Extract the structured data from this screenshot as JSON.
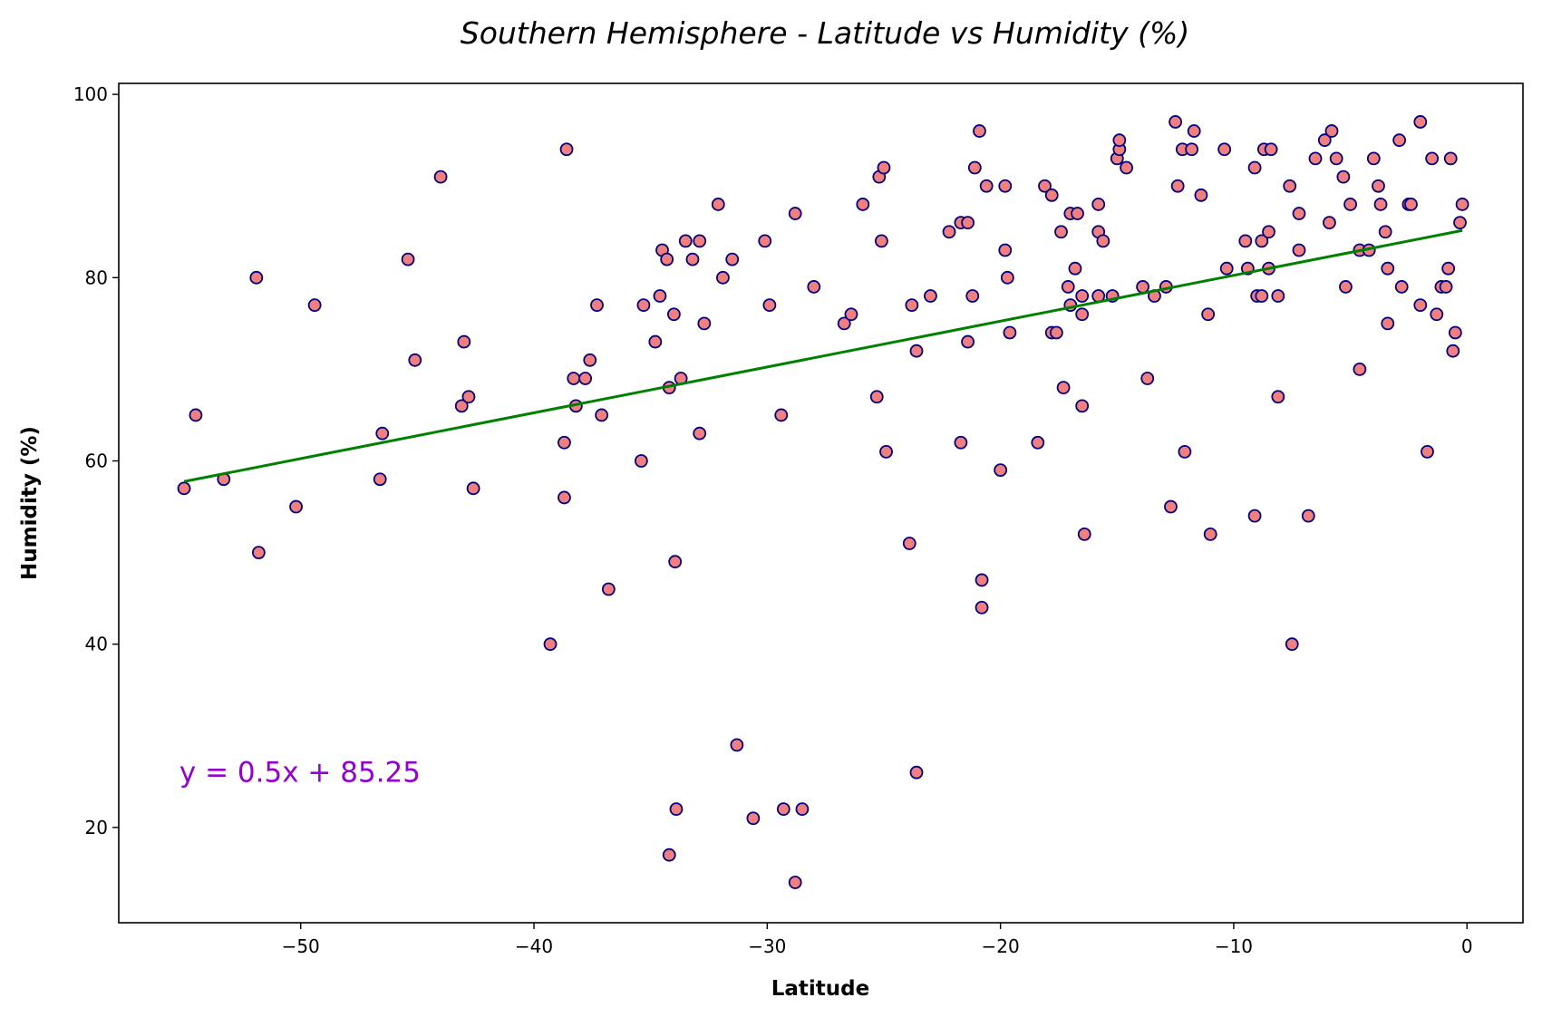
{
  "chart_data": {
    "type": "scatter",
    "title": "Southern Hemisphere - Latitude vs Humidity (%)",
    "xlabel": "Latitude",
    "ylabel": "Humidity (%)",
    "xlim": [
      -57.8,
      2.4
    ],
    "ylim": [
      9.6,
      101.2
    ],
    "grid": false,
    "x_ticks": [
      -50,
      -40,
      -30,
      -20,
      -10,
      0
    ],
    "x_tick_labels": [
      "−50",
      "−40",
      "−30",
      "−20",
      "−10",
      "0"
    ],
    "y_ticks": [
      20,
      40,
      60,
      80,
      100
    ],
    "y_tick_labels": [
      "20",
      "40",
      "60",
      "80",
      "100"
    ],
    "marker_fill": "#f08080",
    "marker_edge": "#000080",
    "regression": {
      "slope": 0.5,
      "intercept": 85.25,
      "x_range": [
        -55.0,
        -0.2
      ],
      "color": "#008000",
      "equation": "y = 0.5x + 85.25",
      "equation_color": "#9400d3",
      "equation_position": [
        -55.2,
        25
      ]
    },
    "points": [
      [
        -55.0,
        57
      ],
      [
        -54.5,
        65
      ],
      [
        -53.3,
        58
      ],
      [
        -51.9,
        80
      ],
      [
        -51.8,
        50
      ],
      [
        -50.2,
        55
      ],
      [
        -49.4,
        77
      ],
      [
        -46.6,
        58
      ],
      [
        -46.5,
        63
      ],
      [
        -45.4,
        82
      ],
      [
        -45.1,
        71
      ],
      [
        -44.0,
        91
      ],
      [
        -43.1,
        66
      ],
      [
        -43.0,
        73
      ],
      [
        -42.8,
        67
      ],
      [
        -42.6,
        57
      ],
      [
        -39.3,
        40
      ],
      [
        -38.7,
        62
      ],
      [
        -38.7,
        56
      ],
      [
        -38.6,
        94
      ],
      [
        -38.3,
        69
      ],
      [
        -38.2,
        66
      ],
      [
        -37.8,
        69
      ],
      [
        -37.6,
        71
      ],
      [
        -37.3,
        77
      ],
      [
        -37.1,
        65
      ],
      [
        -36.8,
        46
      ],
      [
        -35.4,
        60
      ],
      [
        -35.3,
        77
      ],
      [
        -34.8,
        73
      ],
      [
        -34.6,
        78
      ],
      [
        -34.5,
        83
      ],
      [
        -34.3,
        82
      ],
      [
        -34.2,
        68
      ],
      [
        -34.2,
        17
      ],
      [
        -34.0,
        76
      ],
      [
        -33.9,
        22
      ],
      [
        -33.95,
        49
      ],
      [
        -33.7,
        69
      ],
      [
        -33.5,
        84
      ],
      [
        -33.2,
        82
      ],
      [
        -32.9,
        84
      ],
      [
        -32.9,
        63
      ],
      [
        -32.7,
        75
      ],
      [
        -32.1,
        88
      ],
      [
        -31.9,
        80
      ],
      [
        -31.5,
        82
      ],
      [
        -31.3,
        29
      ],
      [
        -30.6,
        21
      ],
      [
        -30.1,
        84
      ],
      [
        -29.9,
        77
      ],
      [
        -29.4,
        65
      ],
      [
        -29.3,
        22
      ],
      [
        -28.8,
        87
      ],
      [
        -28.8,
        14
      ],
      [
        -28.5,
        22
      ],
      [
        -28.0,
        79
      ],
      [
        -26.7,
        75
      ],
      [
        -26.4,
        76
      ],
      [
        -25.9,
        88
      ],
      [
        -25.3,
        67
      ],
      [
        -25.2,
        91
      ],
      [
        -25.1,
        84
      ],
      [
        -25.0,
        92
      ],
      [
        -24.9,
        61
      ],
      [
        -23.9,
        51
      ],
      [
        -23.8,
        77
      ],
      [
        -23.6,
        72
      ],
      [
        -23.6,
        26
      ],
      [
        -23.0,
        78
      ],
      [
        -22.2,
        85
      ],
      [
        -21.7,
        86
      ],
      [
        -21.7,
        62
      ],
      [
        -21.4,
        86
      ],
      [
        -21.4,
        73
      ],
      [
        -21.2,
        78
      ],
      [
        -21.1,
        92
      ],
      [
        -20.9,
        96
      ],
      [
        -20.8,
        47
      ],
      [
        -20.8,
        44
      ],
      [
        -20.6,
        90
      ],
      [
        -20.0,
        59
      ],
      [
        -19.8,
        90
      ],
      [
        -19.8,
        83
      ],
      [
        -19.7,
        80
      ],
      [
        -19.6,
        74
      ],
      [
        -18.4,
        62
      ],
      [
        -18.1,
        90
      ],
      [
        -17.8,
        89
      ],
      [
        -17.8,
        74
      ],
      [
        -17.6,
        74
      ],
      [
        -17.4,
        85
      ],
      [
        -17.3,
        68
      ],
      [
        -17.1,
        79
      ],
      [
        -17.0,
        87
      ],
      [
        -17.0,
        77
      ],
      [
        -16.8,
        81
      ],
      [
        -16.7,
        87
      ],
      [
        -16.5,
        66
      ],
      [
        -16.5,
        76
      ],
      [
        -16.5,
        78
      ],
      [
        -16.4,
        52
      ],
      [
        -15.8,
        85
      ],
      [
        -15.8,
        88
      ],
      [
        -15.8,
        78
      ],
      [
        -15.6,
        84
      ],
      [
        -15.2,
        78
      ],
      [
        -15.0,
        93
      ],
      [
        -14.9,
        94
      ],
      [
        -14.9,
        95
      ],
      [
        -14.6,
        92
      ],
      [
        -13.9,
        79
      ],
      [
        -13.7,
        69
      ],
      [
        -13.4,
        78
      ],
      [
        -12.9,
        79
      ],
      [
        -12.7,
        55
      ],
      [
        -12.5,
        97
      ],
      [
        -12.4,
        90
      ],
      [
        -12.2,
        94
      ],
      [
        -12.1,
        61
      ],
      [
        -11.8,
        94
      ],
      [
        -11.7,
        96
      ],
      [
        -11.4,
        89
      ],
      [
        -11.1,
        76
      ],
      [
        -11.0,
        52
      ],
      [
        -10.4,
        94
      ],
      [
        -10.3,
        81
      ],
      [
        -9.5,
        84
      ],
      [
        -9.4,
        81
      ],
      [
        -9.1,
        54
      ],
      [
        -9.1,
        92
      ],
      [
        -9.0,
        78
      ],
      [
        -8.8,
        84
      ],
      [
        -8.8,
        78
      ],
      [
        -8.7,
        94
      ],
      [
        -8.5,
        85
      ],
      [
        -8.5,
        81
      ],
      [
        -8.4,
        94
      ],
      [
        -8.1,
        78
      ],
      [
        -8.1,
        67
      ],
      [
        -7.6,
        90
      ],
      [
        -7.5,
        40
      ],
      [
        -7.2,
        87
      ],
      [
        -7.2,
        83
      ],
      [
        -6.8,
        54
      ],
      [
        -6.5,
        93
      ],
      [
        -6.1,
        95
      ],
      [
        -5.9,
        86
      ],
      [
        -5.8,
        96
      ],
      [
        -5.6,
        93
      ],
      [
        -5.3,
        91
      ],
      [
        -5.2,
        79
      ],
      [
        -5.0,
        88
      ],
      [
        -4.6,
        70
      ],
      [
        -4.6,
        83
      ],
      [
        -4.2,
        83
      ],
      [
        -4.0,
        93
      ],
      [
        -3.8,
        90
      ],
      [
        -3.7,
        88
      ],
      [
        -3.5,
        85
      ],
      [
        -3.4,
        81
      ],
      [
        -3.4,
        75
      ],
      [
        -2.9,
        95
      ],
      [
        -2.8,
        79
      ],
      [
        -2.5,
        88
      ],
      [
        -2.4,
        88
      ],
      [
        -2.0,
        97
      ],
      [
        -2.0,
        77
      ],
      [
        -1.7,
        61
      ],
      [
        -1.5,
        93
      ],
      [
        -1.3,
        76
      ],
      [
        -1.1,
        79
      ],
      [
        -0.9,
        79
      ],
      [
        -0.8,
        81
      ],
      [
        -0.7,
        93
      ],
      [
        -0.6,
        72
      ],
      [
        -0.5,
        74
      ],
      [
        -0.3,
        86
      ],
      [
        -0.2,
        88
      ]
    ]
  }
}
